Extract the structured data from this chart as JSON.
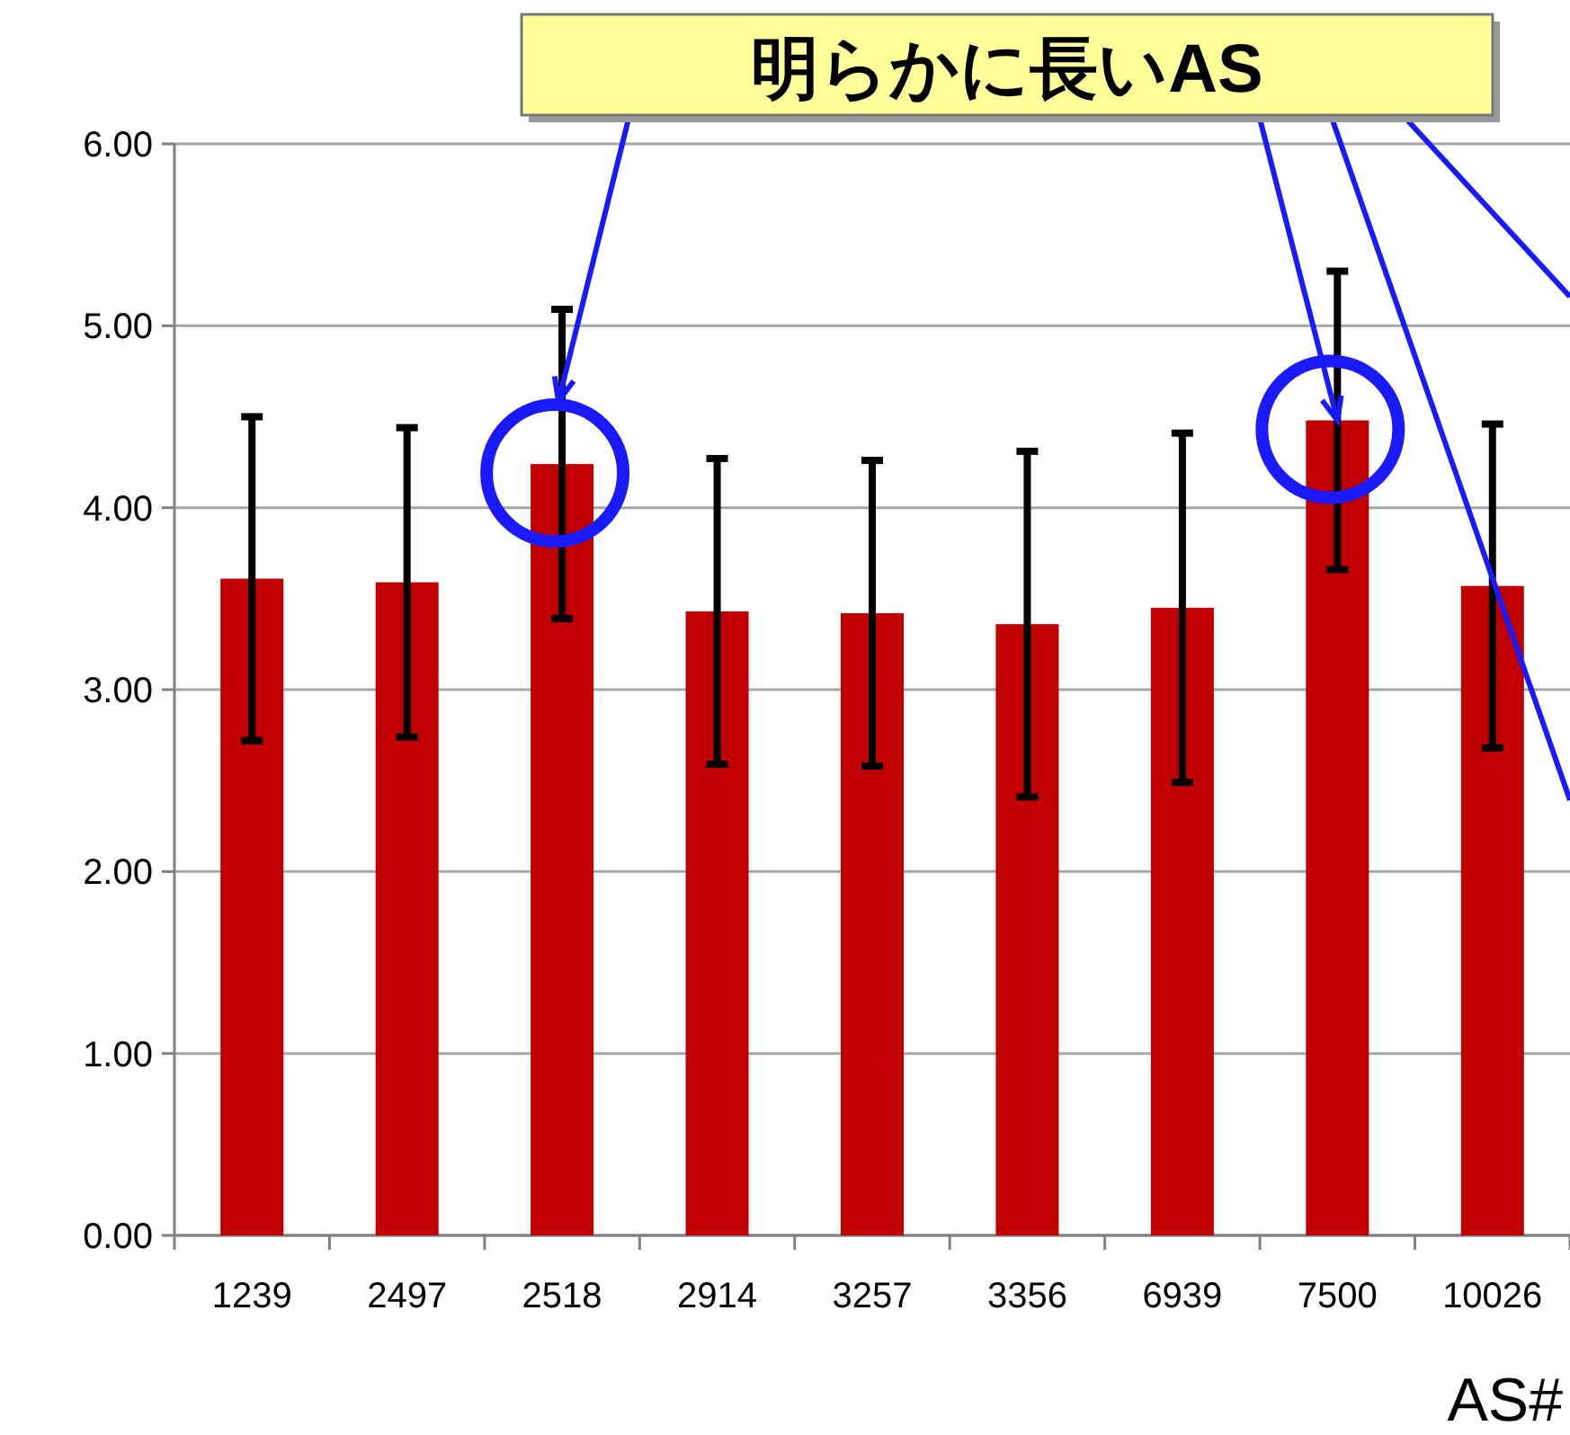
{
  "chart_data": {
    "type": "bar",
    "categories": [
      "1239",
      "2497",
      "2518",
      "2914",
      "3257",
      "3356",
      "6939",
      "7500",
      "10026"
    ],
    "values": [
      3.61,
      3.59,
      4.24,
      3.43,
      3.42,
      3.36,
      3.45,
      4.48,
      3.57
    ],
    "errors": [
      0.89,
      0.85,
      0.85,
      0.84,
      0.84,
      0.95,
      0.96,
      0.82,
      0.89
    ],
    "color": "#c00000",
    "xlabel": "AS#",
    "ylim": [
      0,
      6
    ],
    "yticks": [
      {
        "value": 0,
        "label": "0.00"
      },
      {
        "value": 1,
        "label": "1.00"
      },
      {
        "value": 2,
        "label": "2.00"
      },
      {
        "value": 3,
        "label": "3.00"
      },
      {
        "value": 4,
        "label": "4.00"
      },
      {
        "value": 5,
        "label": "5.00"
      },
      {
        "value": 6,
        "label": "6.00"
      }
    ],
    "grid": "y",
    "annotations": [
      {
        "text": "明らかに長いAS",
        "x": "7500",
        "y": 4.48
      }
    ]
  }
}
